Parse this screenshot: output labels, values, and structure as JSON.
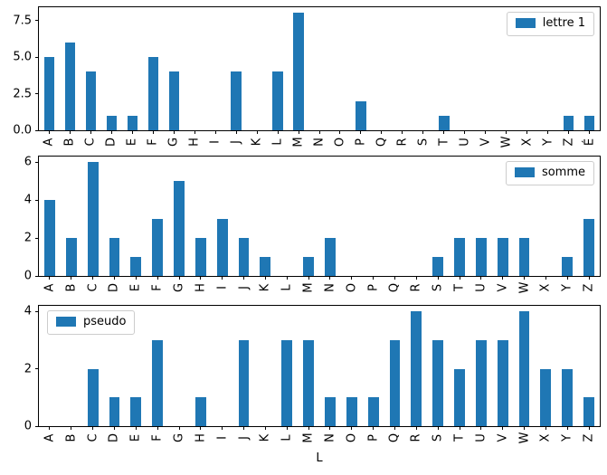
{
  "figure": {
    "background": "#ffffff",
    "bar_color": "#1f77b4",
    "spine_color": "#000000",
    "legend_border_color": "#cccccc"
  },
  "chart_data": [
    {
      "type": "bar",
      "title": "",
      "legend": {
        "label": "lettre 1",
        "position": "upper-right",
        "swatch_color": "#1f77b4"
      },
      "categories": [
        "A",
        "B",
        "C",
        "D",
        "E",
        "F",
        "G",
        "H",
        "I",
        "J",
        "K",
        "L",
        "M",
        "N",
        "O",
        "P",
        "Q",
        "R",
        "S",
        "T",
        "U",
        "V",
        "W",
        "X",
        "Y",
        "Z",
        "É"
      ],
      "values": [
        5,
        6,
        4,
        1,
        1,
        5,
        4,
        0,
        0,
        4,
        0,
        4,
        8,
        0,
        0,
        2,
        0,
        0,
        0,
        1,
        0,
        0,
        0,
        0,
        0,
        1,
        1
      ],
      "xlabel": "",
      "ylabel": "",
      "ylim": [
        0,
        8.4
      ],
      "yticks": [
        {
          "value": 0,
          "label": "0.0"
        },
        {
          "value": 2.5,
          "label": "2.5"
        },
        {
          "value": 5,
          "label": "5.0"
        },
        {
          "value": 7.5,
          "label": "7.5"
        }
      ],
      "grid": false
    },
    {
      "type": "bar",
      "title": "",
      "legend": {
        "label": "somme",
        "position": "upper-right",
        "swatch_color": "#1f77b4"
      },
      "categories": [
        "A",
        "B",
        "C",
        "D",
        "E",
        "F",
        "G",
        "H",
        "I",
        "J",
        "K",
        "L",
        "M",
        "N",
        "O",
        "P",
        "Q",
        "R",
        "S",
        "T",
        "U",
        "V",
        "W",
        "X",
        "Y",
        "Z"
      ],
      "values": [
        4,
        2,
        6,
        2,
        1,
        3,
        5,
        2,
        3,
        2,
        1,
        0,
        1,
        2,
        0,
        0,
        0,
        0,
        1,
        2,
        2,
        2,
        2,
        0,
        1,
        3
      ],
      "xlabel": "",
      "ylabel": "",
      "ylim": [
        0,
        6.3
      ],
      "yticks": [
        {
          "value": 0,
          "label": "0"
        },
        {
          "value": 2,
          "label": "2"
        },
        {
          "value": 4,
          "label": "4"
        },
        {
          "value": 6,
          "label": "6"
        }
      ],
      "grid": false
    },
    {
      "type": "bar",
      "title": "",
      "legend": {
        "label": "pseudo",
        "position": "upper-left",
        "swatch_color": "#1f77b4"
      },
      "categories": [
        "A",
        "B",
        "C",
        "D",
        "E",
        "F",
        "G",
        "H",
        "I",
        "J",
        "K",
        "L",
        "M",
        "N",
        "O",
        "P",
        "Q",
        "R",
        "S",
        "T",
        "U",
        "V",
        "W",
        "X",
        "Y",
        "Z"
      ],
      "values": [
        0,
        0,
        2,
        1,
        1,
        3,
        0,
        1,
        0,
        3,
        0,
        3,
        3,
        1,
        1,
        1,
        3,
        4,
        3,
        2,
        3,
        3,
        4,
        2,
        2,
        1
      ],
      "xlabel": "L",
      "ylabel": "",
      "ylim": [
        0,
        4.2
      ],
      "yticks": [
        {
          "value": 0,
          "label": "0"
        },
        {
          "value": 2,
          "label": "2"
        },
        {
          "value": 4,
          "label": "4"
        }
      ],
      "grid": false
    }
  ]
}
